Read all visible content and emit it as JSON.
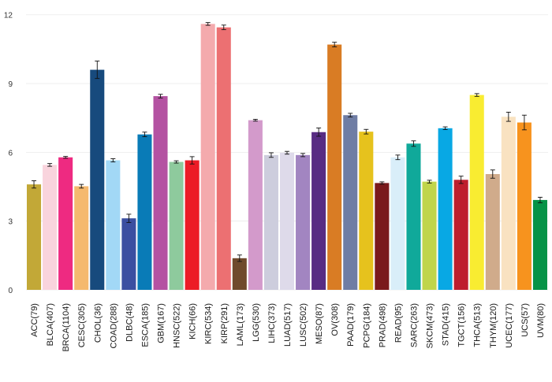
{
  "chart_data": {
    "type": "bar",
    "title": "",
    "xlabel": "",
    "ylabel": "",
    "ylim": [
      0,
      12.3
    ],
    "yticks": [
      0,
      3,
      6,
      9,
      12
    ],
    "ytick_labels": [
      "0",
      "3",
      "6",
      "9",
      "12"
    ],
    "grid": "horizontal",
    "error_bars": true,
    "categories": [
      "ACC(79)",
      "BLCA(407)",
      "BRCA(1104)",
      "CESC(305)",
      "CHOL(36)",
      "COAD(288)",
      "DLBC(48)",
      "ESCA(185)",
      "GBM(167)",
      "HNSC(522)",
      "KICH(66)",
      "KIRC(534)",
      "KIRP(291)",
      "LAML(173)",
      "LGG(530)",
      "LIHC(373)",
      "LUAD(517)",
      "LUSC(502)",
      "MESO(87)",
      "OV(308)",
      "PAAD(179)",
      "PCPG(184)",
      "PRAD(498)",
      "READ(95)",
      "SARC(263)",
      "SKCM(473)",
      "STAD(415)",
      "TGCT(156)",
      "THCA(513)",
      "THYM(120)",
      "UCEC(177)",
      "UCS(57)",
      "UVM(80)"
    ],
    "values": [
      4.6,
      5.45,
      5.78,
      4.52,
      9.6,
      5.65,
      3.12,
      6.78,
      8.45,
      5.58,
      5.65,
      11.6,
      11.45,
      1.38,
      7.4,
      5.88,
      5.98,
      5.88,
      6.88,
      10.7,
      7.62,
      6.9,
      4.66,
      5.78,
      6.38,
      4.72,
      7.05,
      4.8,
      8.5,
      5.05,
      7.55,
      7.3,
      3.92
    ],
    "errors": [
      0.16,
      0.06,
      0.04,
      0.08,
      0.38,
      0.07,
      0.18,
      0.1,
      0.08,
      0.05,
      0.16,
      0.06,
      0.1,
      0.14,
      0.04,
      0.1,
      0.06,
      0.07,
      0.18,
      0.1,
      0.08,
      0.1,
      0.05,
      0.1,
      0.12,
      0.06,
      0.06,
      0.16,
      0.06,
      0.18,
      0.2,
      0.32,
      0.12
    ],
    "colors": [
      "#C2A837",
      "#F9D4DD",
      "#EE2A81",
      "#F5B96E",
      "#174A7D",
      "#A2D8F6",
      "#3B4FA1",
      "#097BB7",
      "#B452A2",
      "#8ECA9D",
      "#EC1C26",
      "#F4AAAD",
      "#EC7072",
      "#6F4A2C",
      "#D39ACB",
      "#CDCDDD",
      "#DEDAEA",
      "#A285C1",
      "#582C83",
      "#D97C24",
      "#6F7DA4",
      "#E6C21D",
      "#7A1A1C",
      "#D9EEF9",
      "#10A99A",
      "#C0D54B",
      "#08A8E4",
      "#BE1E2D",
      "#F9EC31",
      "#D0AB8B",
      "#F9E2C1",
      "#F7931E",
      "#079347"
    ]
  }
}
